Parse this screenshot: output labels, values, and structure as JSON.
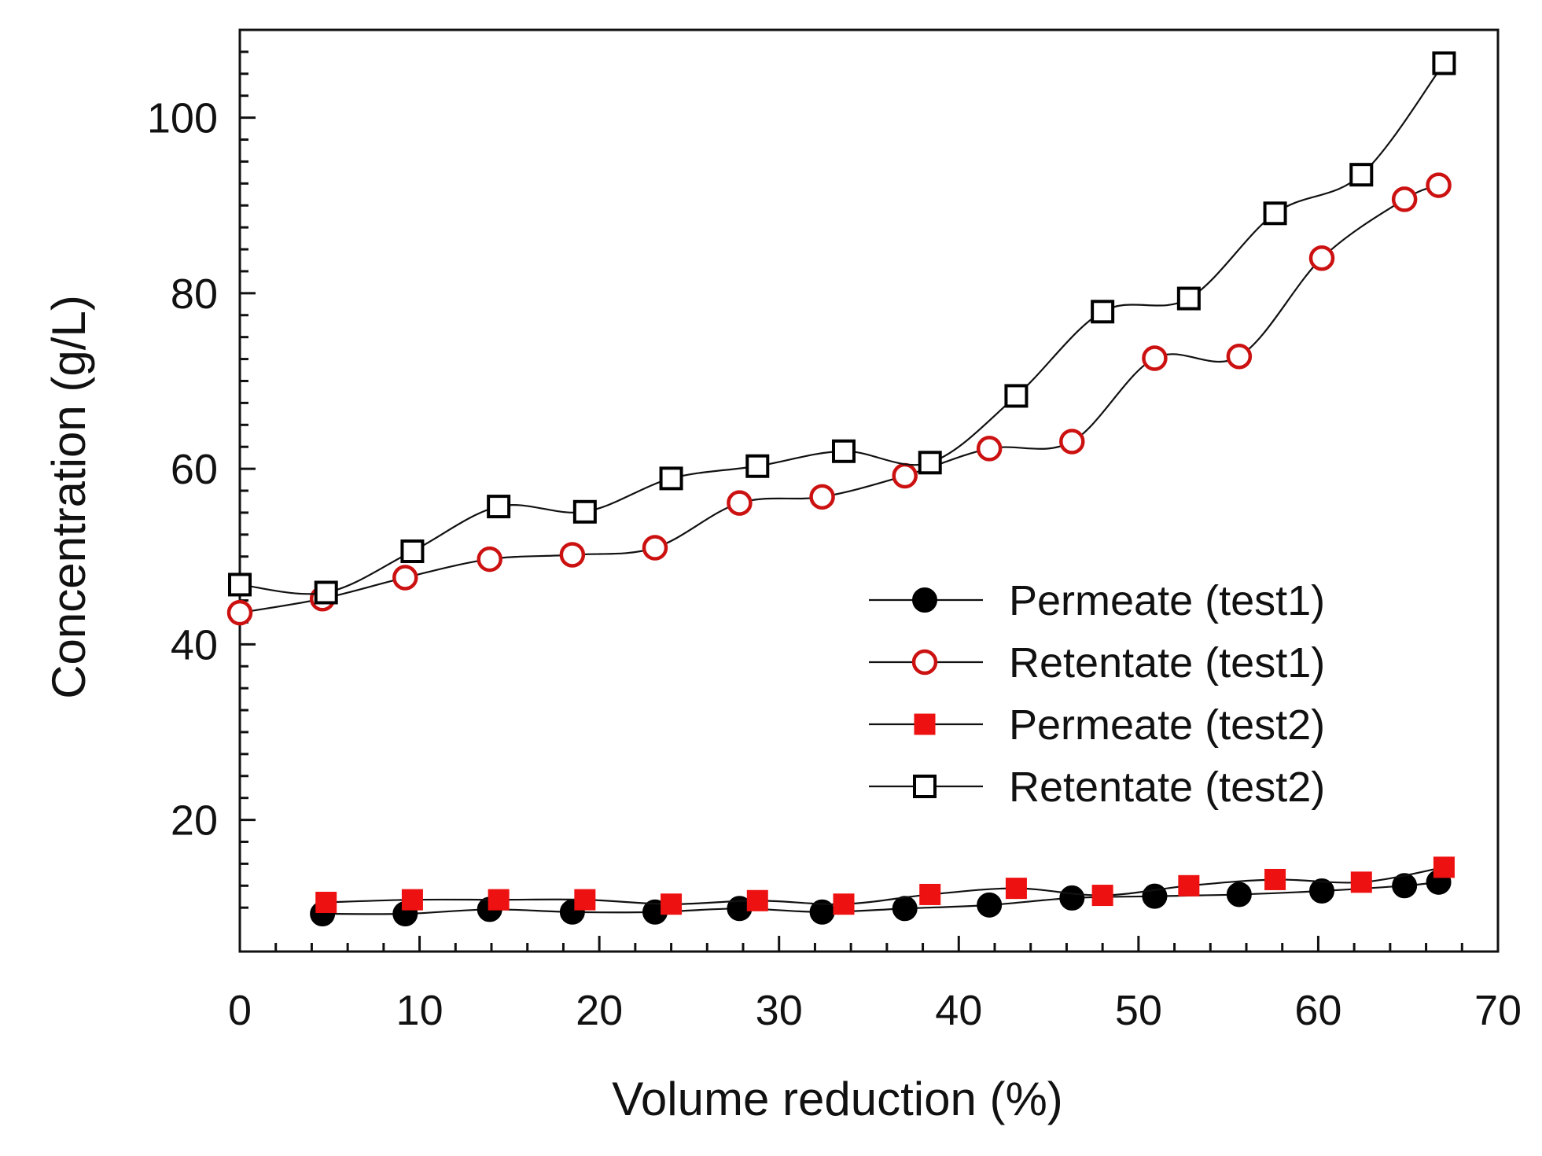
{
  "chart_data": {
    "type": "line",
    "title": "",
    "xlabel": "Volume reduction (%)",
    "ylabel": "Concentration (g/L)",
    "xlim": [
      0,
      70
    ],
    "ylim": [
      5,
      110
    ],
    "xticks": [
      0,
      10,
      20,
      30,
      40,
      50,
      60,
      70
    ],
    "yticks": [
      20,
      40,
      60,
      80,
      100
    ],
    "grid": false,
    "legend_position": "center-right",
    "series": [
      {
        "name": "Permeate (test1)",
        "marker": "filled-circle",
        "color": "#000000",
        "x": [
          4.6,
          9.2,
          13.9,
          18.5,
          23.1,
          27.8,
          32.4,
          37.0,
          41.7,
          46.3,
          50.9,
          55.6,
          60.2,
          64.8,
          66.7
        ],
        "y": [
          9.3,
          9.3,
          9.8,
          9.5,
          9.5,
          9.9,
          9.5,
          9.9,
          10.3,
          11.1,
          11.3,
          11.5,
          11.9,
          12.5,
          12.9
        ]
      },
      {
        "name": "Retentate (test1)",
        "marker": "open-circle",
        "color": "#cc1111",
        "x": [
          0,
          4.6,
          9.2,
          13.9,
          18.5,
          23.1,
          27.8,
          32.4,
          37.0,
          41.7,
          46.3,
          50.9,
          55.6,
          60.2,
          64.8,
          66.7
        ],
        "y": [
          43.6,
          45.2,
          47.6,
          49.7,
          50.2,
          51.0,
          56.1,
          56.8,
          59.2,
          62.3,
          63.1,
          72.6,
          72.8,
          84.0,
          90.7,
          92.3
        ]
      },
      {
        "name": "Permeate (test2)",
        "marker": "filled-square",
        "color": "#ee1111",
        "x": [
          4.8,
          9.6,
          14.4,
          19.2,
          24.0,
          28.8,
          33.6,
          38.4,
          43.2,
          48.0,
          52.8,
          57.6,
          62.4,
          67.0
        ],
        "y": [
          10.6,
          10.9,
          10.9,
          10.9,
          10.4,
          10.8,
          10.4,
          11.5,
          12.2,
          11.4,
          12.5,
          13.2,
          12.9,
          14.6
        ]
      },
      {
        "name": "Retentate (test2)",
        "marker": "open-square",
        "color": "#000000",
        "x": [
          0,
          4.8,
          9.6,
          14.4,
          19.2,
          24.0,
          28.8,
          33.6,
          38.4,
          43.2,
          48.0,
          52.8,
          57.6,
          62.4,
          67.0
        ],
        "y": [
          46.8,
          45.9,
          50.6,
          55.7,
          55.1,
          58.9,
          60.3,
          62.0,
          60.7,
          68.3,
          77.9,
          79.4,
          89.1,
          93.5,
          106.2
        ]
      }
    ]
  }
}
